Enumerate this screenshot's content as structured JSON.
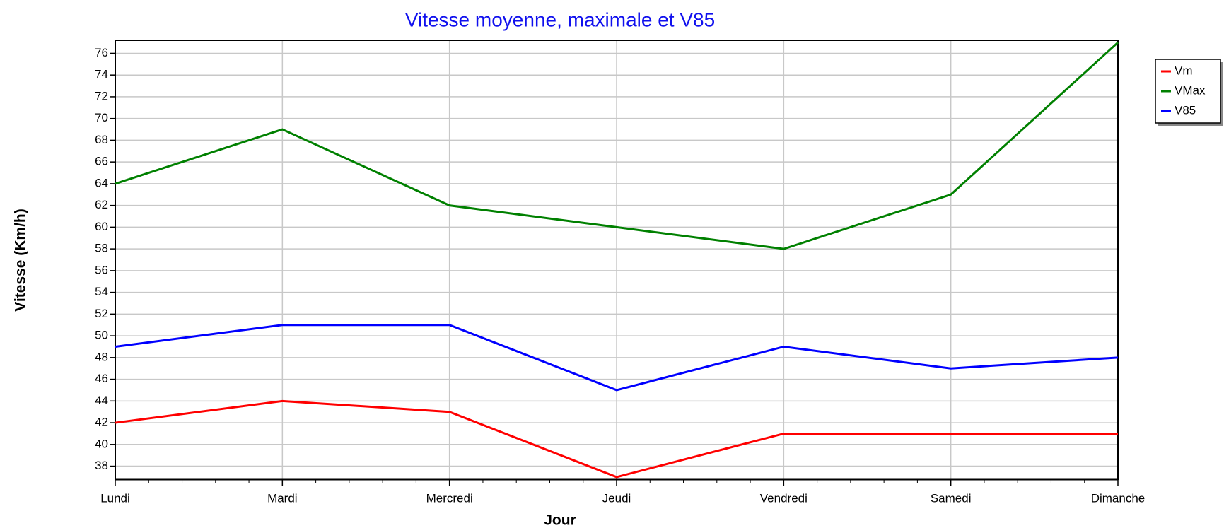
{
  "chart_data": {
    "type": "line",
    "title": "Vitesse moyenne, maximale et V85",
    "x_label": "Jour",
    "y_label": "Vitesse (Km/h)",
    "categories": [
      "Lundi",
      "Mardi",
      "Mercredi",
      "Jeudi",
      "Vendredi",
      "Samedi",
      "Dimanche"
    ],
    "series": [
      {
        "name": "Vm",
        "color": "#ff0000",
        "values": [
          42,
          44,
          43,
          37,
          41,
          41,
          41
        ]
      },
      {
        "name": "VMax",
        "color": "#008000",
        "values": [
          64,
          69,
          62,
          60,
          58,
          63,
          77
        ]
      },
      {
        "name": "V85",
        "color": "#0000ff",
        "values": [
          49,
          51,
          51,
          45,
          49,
          47,
          48
        ]
      }
    ],
    "ylim": [
      36.8,
      77.2
    ],
    "yticks": [
      38,
      40,
      42,
      44,
      46,
      48,
      50,
      52,
      54,
      56,
      58,
      60,
      62,
      64,
      66,
      68,
      70,
      72,
      74,
      76
    ],
    "grid": true,
    "legend": "right"
  }
}
